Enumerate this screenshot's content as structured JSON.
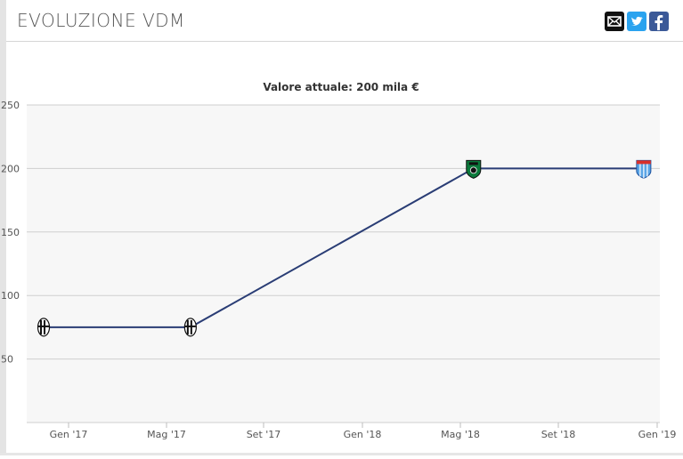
{
  "header": {
    "title": "EVOLUZIONE VDM",
    "share_buttons": [
      {
        "icon": "email-icon",
        "color": "#111111"
      },
      {
        "icon": "twitter-icon",
        "color": "#2aa3ef"
      },
      {
        "icon": "facebook-icon",
        "color": "#3b5998"
      }
    ]
  },
  "chart_data": {
    "type": "line",
    "title": "Valore attuale: 200 mila €",
    "xlabel": "",
    "ylabel": "",
    "ylim": [
      0,
      250
    ],
    "yticks": [
      50,
      100,
      150,
      200,
      250
    ],
    "xticks": [
      "Gen '17",
      "Mag '17",
      "Set '17",
      "Gen '18",
      "Mag '18",
      "Set '18",
      "Gen '19"
    ],
    "grid": true,
    "legend": "none",
    "line_color": "#2a3d75",
    "series": [
      {
        "x": [
          "2016-12-22",
          "2017-06-22",
          "2018-06-08",
          "2019-01-05"
        ],
        "values": [
          75,
          75,
          200,
          200
        ],
        "markers": [
          "juventus-crest-icon",
          "juventus-crest-icon",
          "sassuolo-crest-icon",
          "pec-zwolle-crest-icon"
        ]
      }
    ]
  }
}
